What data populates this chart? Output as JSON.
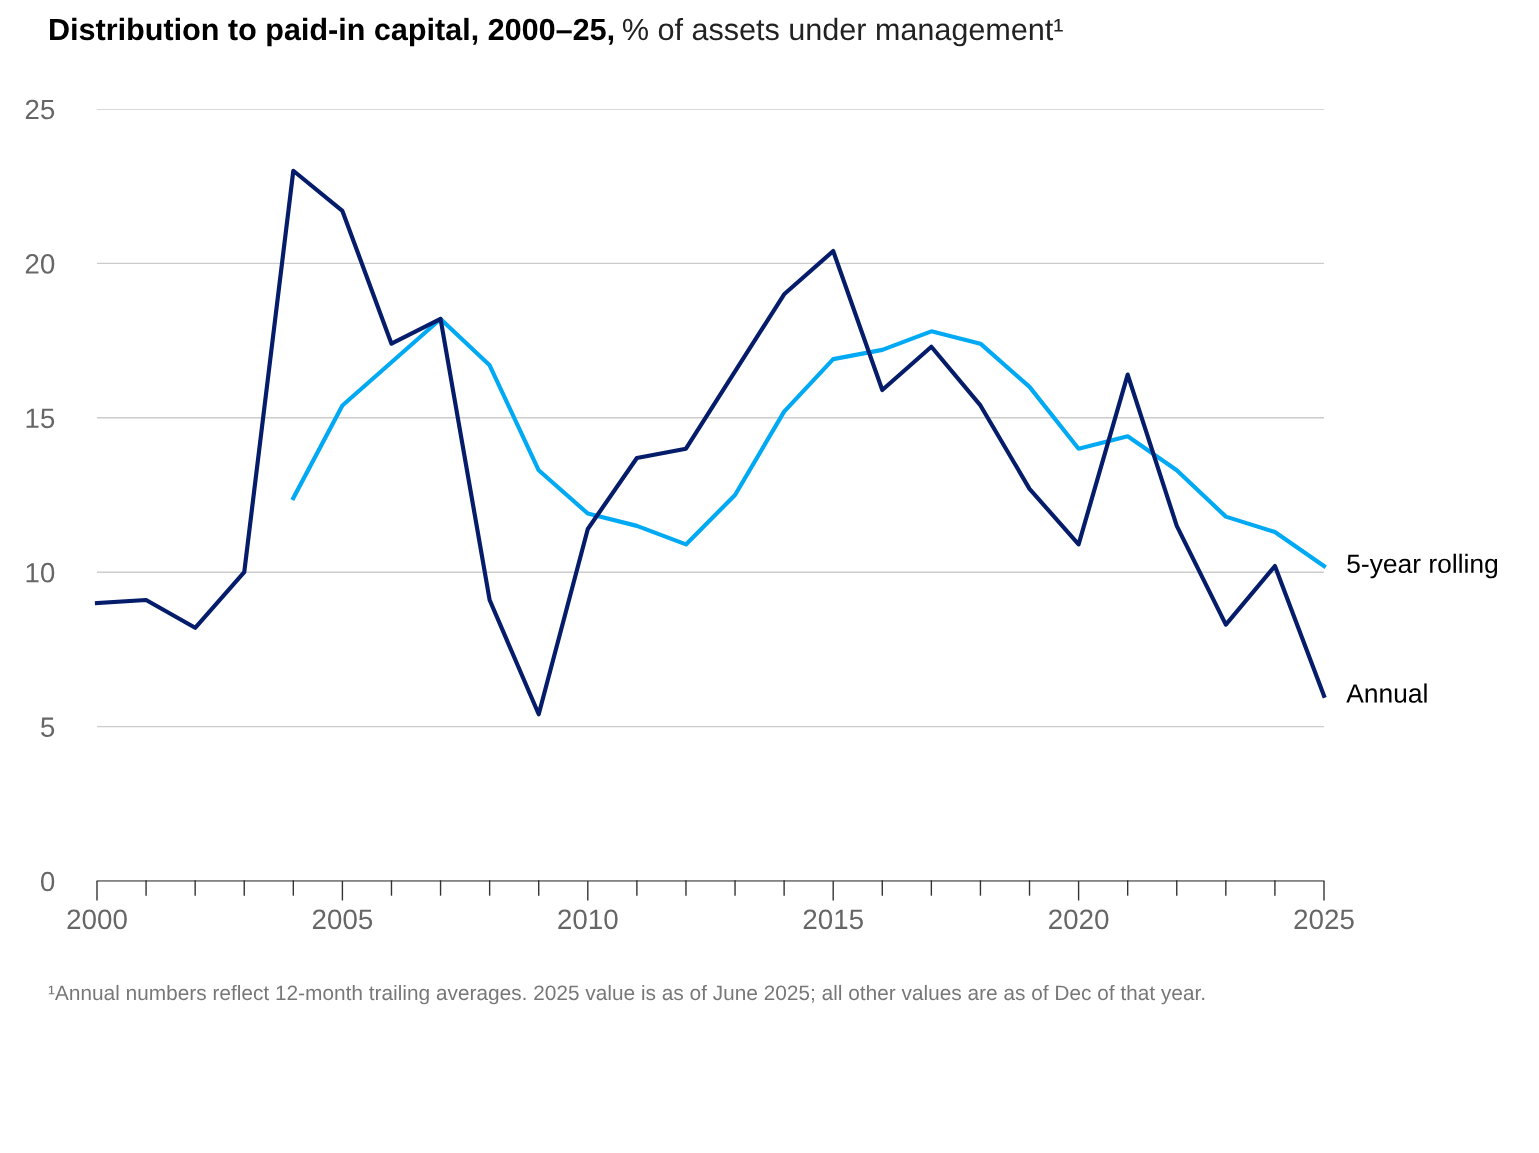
{
  "chart_data": {
    "type": "line",
    "title": "Distribution to paid-in capital, 2000–25,",
    "subtitle": "% of assets under management¹",
    "x": [
      2000,
      2001,
      2002,
      2003,
      2004,
      2005,
      2006,
      2007,
      2008,
      2009,
      2010,
      2011,
      2012,
      2013,
      2014,
      2015,
      2016,
      2017,
      2018,
      2019,
      2020,
      2021,
      2022,
      2023,
      2024,
      2025
    ],
    "series": [
      {
        "name": "5-year rolling",
        "color": "#00a9f4",
        "values": [
          null,
          null,
          null,
          null,
          12.4,
          15.4,
          16.8,
          18.2,
          16.7,
          13.3,
          11.9,
          11.5,
          10.9,
          12.5,
          15.2,
          16.9,
          17.2,
          17.8,
          17.4,
          16.0,
          14.0,
          14.4,
          13.3,
          11.8,
          11.3,
          10.2
        ]
      },
      {
        "name": "Annual",
        "color": "#051c6b",
        "values": [
          9.0,
          9.1,
          8.2,
          10.0,
          23.0,
          21.7,
          17.4,
          18.2,
          9.1,
          5.4,
          11.4,
          13.7,
          14.0,
          16.5,
          19.0,
          20.4,
          15.9,
          17.3,
          15.4,
          12.7,
          10.9,
          16.4,
          11.5,
          8.3,
          10.2,
          6.0
        ]
      }
    ],
    "xlim": [
      2000,
      2025
    ],
    "xticks": [
      2000,
      {
        "value": 2001,
        "label": null
      },
      {
        "value": 2002,
        "label": null
      },
      {
        "value": 2003,
        "label": null
      },
      {
        "value": 2004,
        "label": null
      },
      2005,
      {
        "value": 2006,
        "label": null
      },
      {
        "value": 2007,
        "label": null
      },
      {
        "value": 2008,
        "label": null
      },
      {
        "value": 2009,
        "label": null
      },
      2010,
      {
        "value": 2011,
        "label": null
      },
      {
        "value": 2012,
        "label": null
      },
      {
        "value": 2013,
        "label": null
      },
      {
        "value": 2014,
        "label": null
      },
      2015,
      {
        "value": 2016,
        "label": null
      },
      {
        "value": 2017,
        "label": null
      },
      {
        "value": 2018,
        "label": null
      },
      {
        "value": 2019,
        "label": null
      },
      2020,
      {
        "value": 2021,
        "label": null
      },
      {
        "value": 2022,
        "label": null
      },
      {
        "value": 2023,
        "label": null
      },
      {
        "value": 2024,
        "label": null
      },
      2025
    ],
    "ylim": [
      0,
      25
    ],
    "yticks": [
      0,
      5,
      10,
      15,
      20,
      25
    ],
    "grid": "y",
    "legend": false,
    "marker": "none",
    "line_style": "solid",
    "annotations": [
      "¹Annual numbers reflect 12-month trailing averages. 2025 value is as of June 2025; all other values are as of Dec of that year."
    ]
  }
}
